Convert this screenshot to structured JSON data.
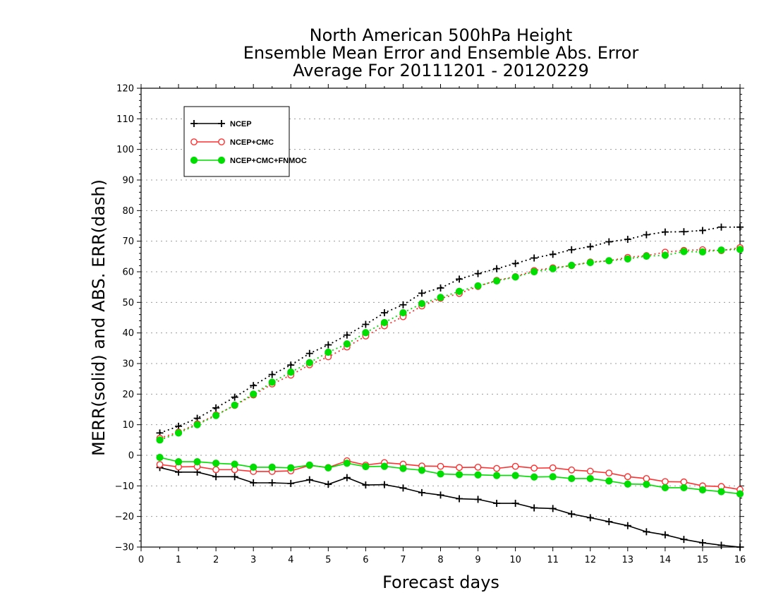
{
  "chart_data": {
    "type": "line",
    "title": [
      "North American 500hPa Height",
      "Ensemble Mean Error and Ensemble Abs. Error",
      "Average For 20111201 - 20120229"
    ],
    "xlabel": "Forecast days",
    "ylabel": "MERR(solid) and ABS. ERR(dash)",
    "xlim": [
      0,
      16
    ],
    "ylim": [
      -30,
      120
    ],
    "xticks": [
      "0",
      "1",
      "2",
      "3",
      "4",
      "5",
      "6",
      "7",
      "8",
      "9",
      "10",
      "11",
      "12",
      "13",
      "14",
      "15",
      "16"
    ],
    "yticks": [
      "−30",
      "−20",
      "−10",
      "0",
      "10",
      "20",
      "30",
      "40",
      "50",
      "60",
      "70",
      "80",
      "90",
      "100",
      "110",
      "120"
    ],
    "grid": true,
    "legend_position": "top-left",
    "x": [
      0.5,
      1,
      1.5,
      2,
      2.5,
      3,
      3.5,
      4,
      4.5,
      5,
      5.5,
      6,
      6.5,
      7,
      7.5,
      8,
      8.5,
      9,
      9.5,
      10,
      10.5,
      11,
      11.5,
      12,
      12.5,
      13,
      13.5,
      14,
      14.5,
      15,
      15.5,
      16
    ],
    "series": [
      {
        "name": "NCEP",
        "color": "#000000",
        "marker": "plus",
        "merr": [
          -4,
          -5.5,
          -5.5,
          -7,
          -7,
          -9,
          -9,
          -9.2,
          -8,
          -9.5,
          -7.3,
          -9.7,
          -9.6,
          -10.7,
          -12.2,
          -13,
          -14.2,
          -14.4,
          -15.7,
          -15.7,
          -17.2,
          -17.4,
          -19.2,
          -20.4,
          -21.7,
          -23,
          -25,
          -26,
          -27.5,
          -28.6,
          -29.4,
          -30
        ],
        "abserr": [
          7.3,
          9.5,
          12.1,
          15.5,
          19,
          22.8,
          26.4,
          29.5,
          33.3,
          36.1,
          39.3,
          42.8,
          46.6,
          49.2,
          53,
          54.7,
          57.6,
          59.4,
          61,
          62.7,
          64.5,
          65.7,
          67.2,
          68.2,
          69.8,
          70.6,
          72.1,
          73,
          73.1,
          73.5,
          74.6,
          74.6
        ]
      },
      {
        "name": "NCEP+CMC",
        "color": "#ff3030",
        "marker": "open-circle",
        "merr": [
          -3,
          -3.8,
          -3.7,
          -4.7,
          -4.7,
          -5.3,
          -5.3,
          -5.1,
          -3.3,
          -4,
          -1.8,
          -3.2,
          -2.4,
          -2.9,
          -3.5,
          -3.6,
          -4,
          -3.9,
          -4.3,
          -3.6,
          -4.2,
          -4.1,
          -4.8,
          -5.2,
          -5.8,
          -7,
          -7.6,
          -8.6,
          -8.7,
          -10,
          -10.2,
          -11.2
        ],
        "abserr": [
          5.6,
          7.6,
          10.3,
          13.2,
          16.3,
          19.7,
          23.3,
          26.2,
          29.6,
          32.2,
          35.4,
          39,
          42.3,
          45.3,
          48.8,
          51.3,
          52.9,
          55.2,
          57.2,
          58.4,
          60.4,
          61.3,
          62,
          63.2,
          63.6,
          64.7,
          65.3,
          66.4,
          67,
          67.2,
          66.9,
          67.9
        ]
      },
      {
        "name": "NCEP+CMC+FNMOC",
        "color": "#00dd00",
        "marker": "filled-circle",
        "merr": [
          -0.7,
          -2.1,
          -2.1,
          -2.6,
          -2.9,
          -3.9,
          -3.9,
          -4.1,
          -3.2,
          -4.1,
          -2.6,
          -3.7,
          -3.6,
          -4.3,
          -4.9,
          -6.1,
          -6.3,
          -6.4,
          -6.6,
          -6.6,
          -7.1,
          -7,
          -7.6,
          -7.6,
          -8.4,
          -9.4,
          -9.5,
          -10.6,
          -10.6,
          -11.3,
          -11.9,
          -12.6
        ],
        "abserr": [
          5,
          7.3,
          10,
          13,
          16.4,
          20,
          23.9,
          27.2,
          30.3,
          33.7,
          36.4,
          40.1,
          43.4,
          46.6,
          49.6,
          51.6,
          53.6,
          55.4,
          57,
          58.3,
          60,
          61,
          62.1,
          63,
          63.6,
          64.2,
          65.1,
          65.4,
          66.6,
          66.5,
          67.1,
          67.3
        ]
      }
    ]
  }
}
